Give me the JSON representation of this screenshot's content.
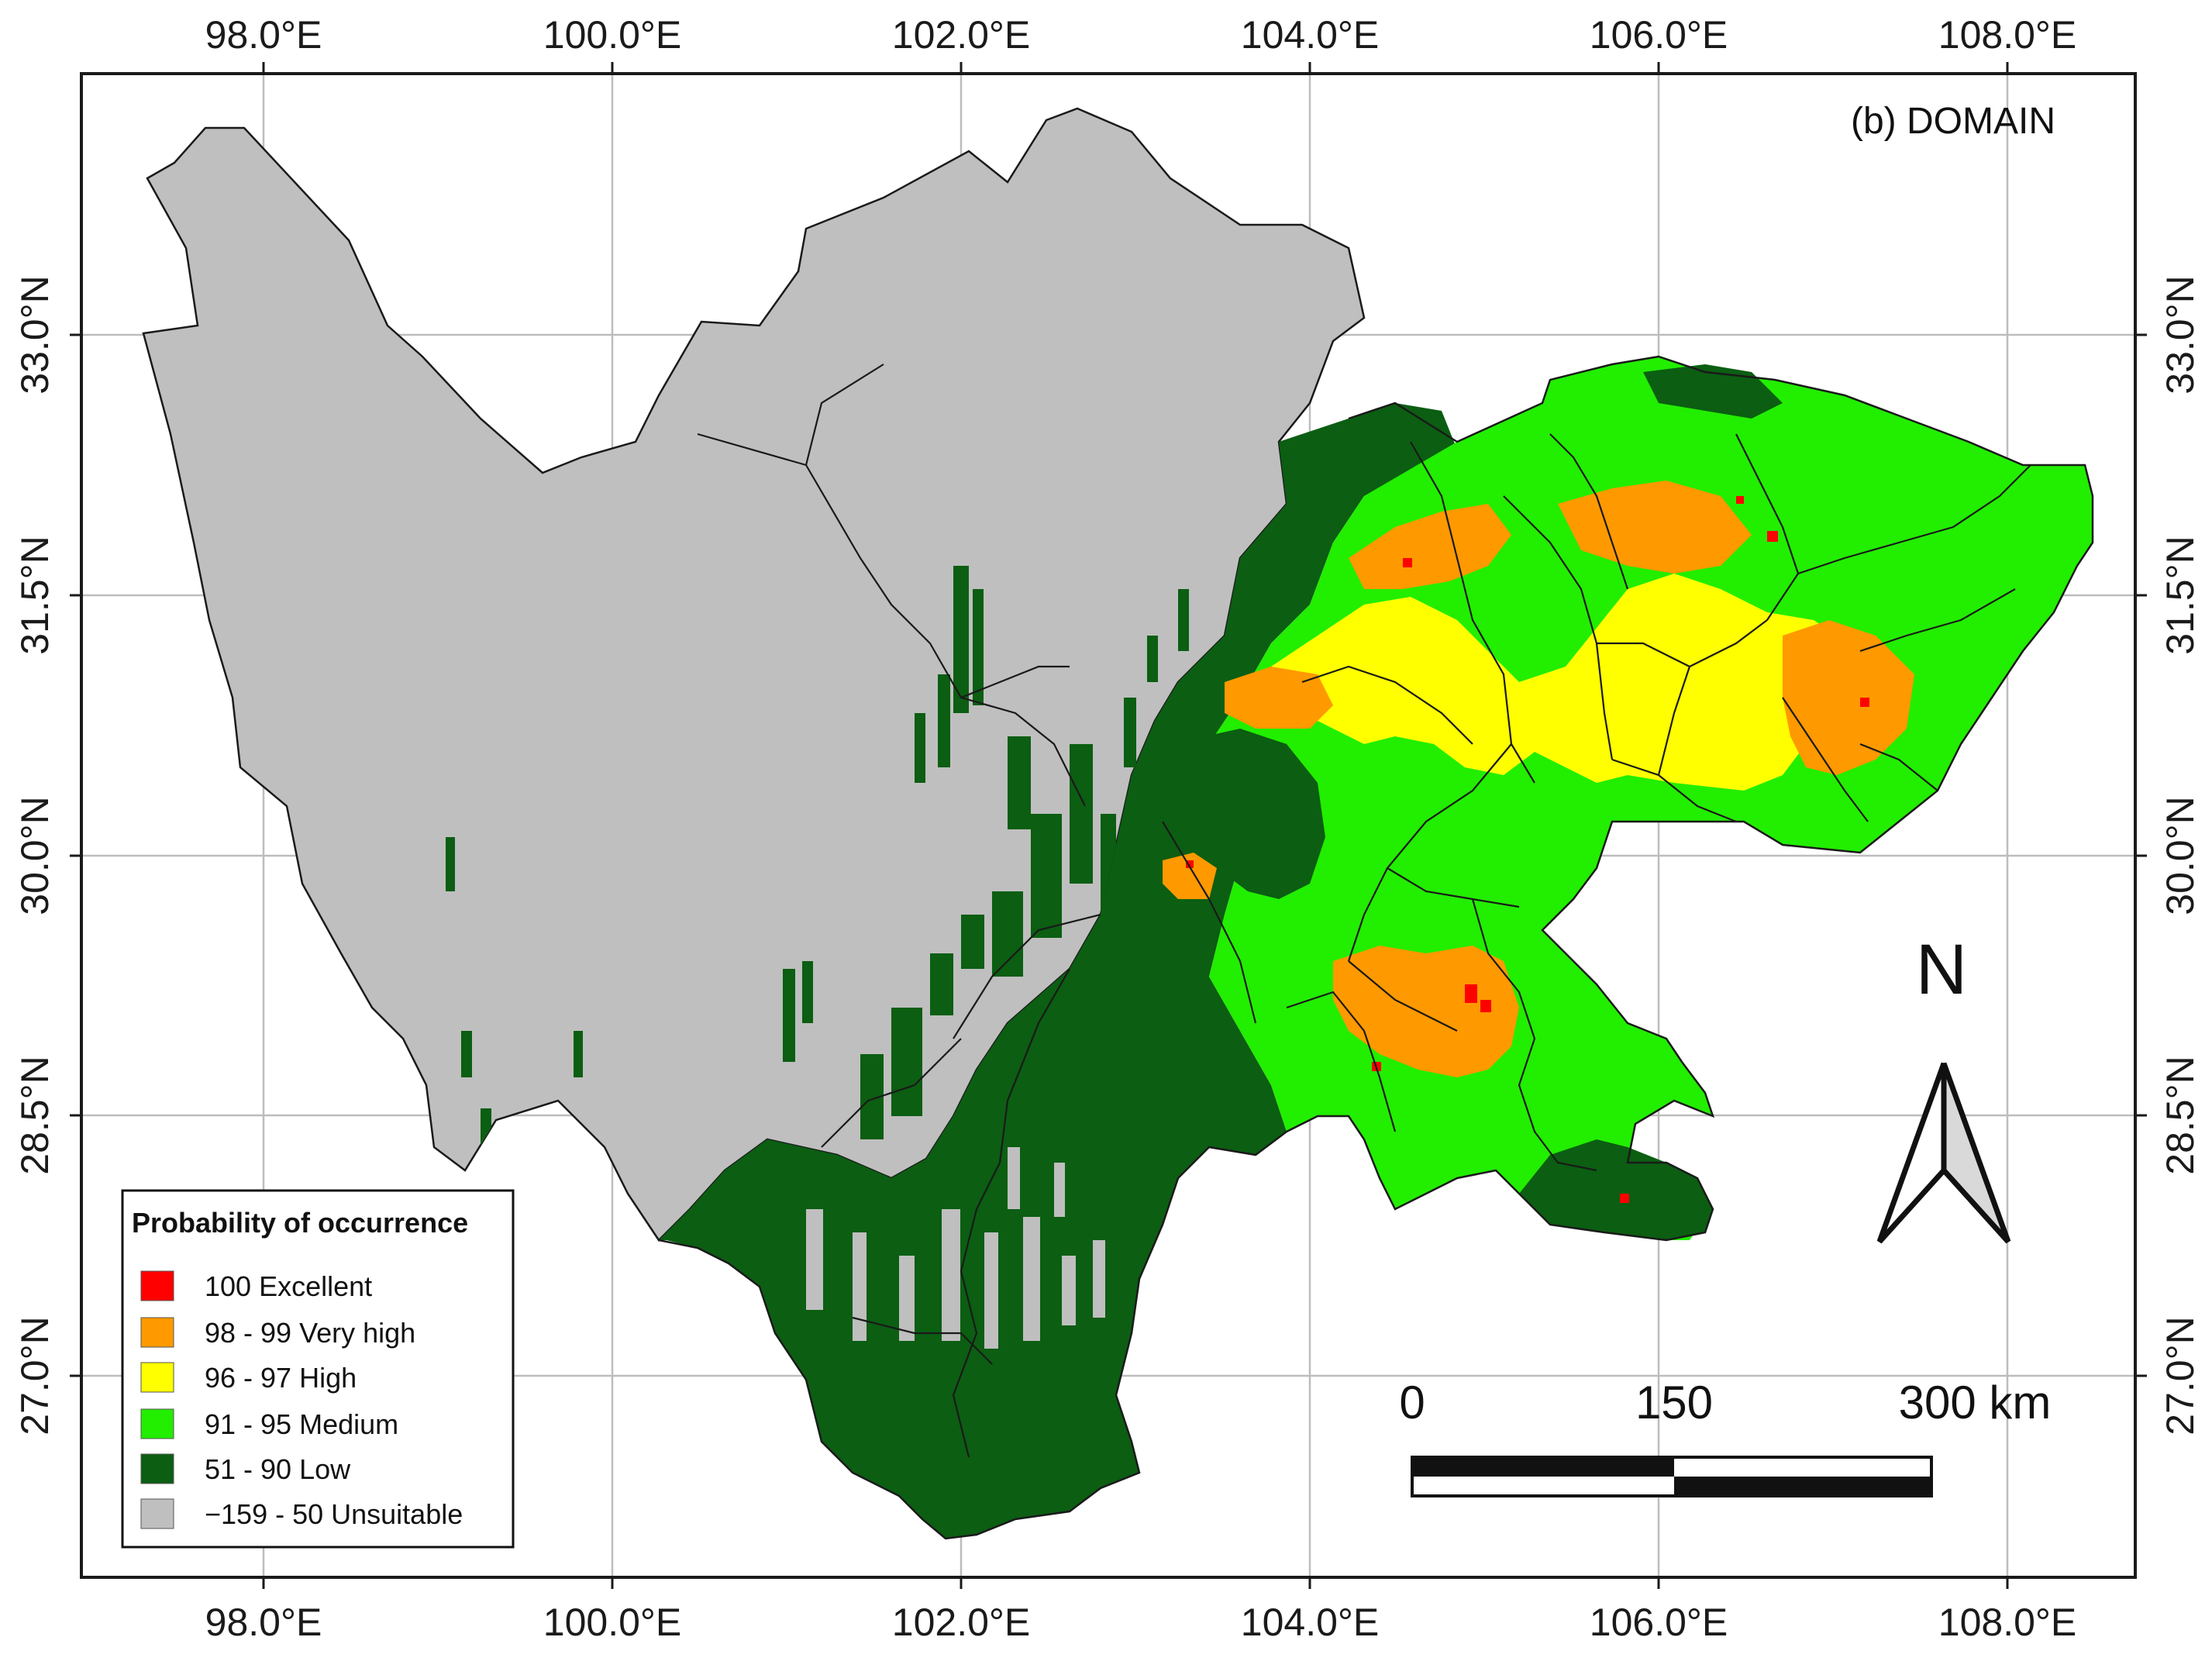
{
  "map": {
    "panel_label": "(b) DOMAIN",
    "lon_ticks": [
      "98.0°E",
      "100.0°E",
      "102.0°E",
      "104.0°E",
      "106.0°E",
      "108.0°E"
    ],
    "lat_ticks": [
      "33.0°N",
      "31.5°N",
      "30.0°N",
      "28.5°N",
      "27.0°N"
    ],
    "north_arrow": {
      "letter": "N",
      "icon": "north-arrow-icon"
    },
    "scale_bar": {
      "labels": [
        "0",
        "150",
        "300 km"
      ]
    }
  },
  "legend": {
    "title": "Probability of occurrence",
    "items": [
      {
        "label": "100 Excellent",
        "color": "#ff0000"
      },
      {
        "label": "98 - 99 Very high",
        "color": "#ff9900"
      },
      {
        "label": "96 - 97 High",
        "color": "#ffff00"
      },
      {
        "label": "91 - 95 Medium",
        "color": "#22ee00"
      },
      {
        "label": "51 - 90 Low",
        "color": "#0b5e12"
      },
      {
        "label": "−159 - 50 Unsuitable",
        "color": "#bfbfbf"
      }
    ]
  },
  "colors": {
    "unsuitable": "#bfbfbf",
    "low": "#0b5e12",
    "medium": "#22ee00",
    "high": "#ffff00",
    "very_high": "#ff9900",
    "excellent": "#ff0000",
    "grid": "#bdbdbd",
    "boundary": "#1a1a1a"
  }
}
